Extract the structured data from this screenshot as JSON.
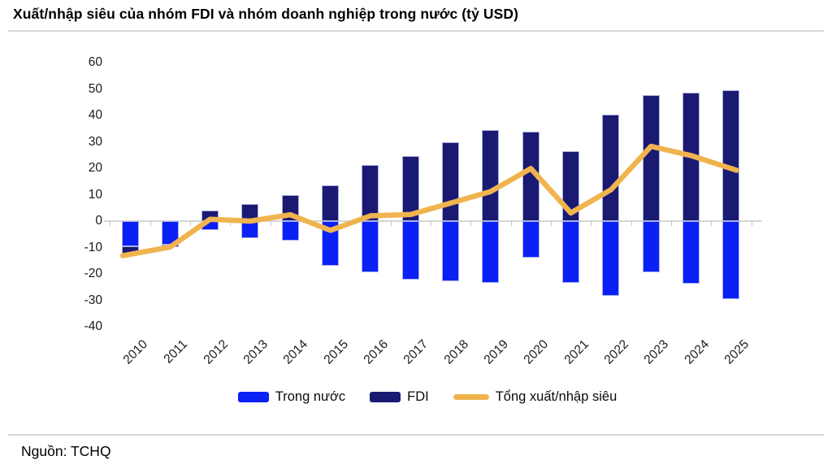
{
  "title": "Xuất/nhập siêu của nhóm FDI và nhóm doanh nghiệp trong nước (tỷ USD)",
  "source": "Nguồn: TCHQ",
  "legend": [
    {
      "label": "Trong nước",
      "swatch": "bar",
      "color": "#0b20f5"
    },
    {
      "label": "FDI",
      "swatch": "bar",
      "color": "#1a1a73"
    },
    {
      "label": "Tổng xuất/nhập siêu",
      "swatch": "line",
      "color": "#f0b44e"
    }
  ],
  "chart_data": {
    "type": "bar",
    "subtype": "bars-with-line-overlay",
    "title": "Xuất/nhập siêu của nhóm FDI và nhóm doanh nghiệp trong nước (tỷ USD)",
    "categories": [
      "2010",
      "2011",
      "2012",
      "2013",
      "2014",
      "2015",
      "2016",
      "2017",
      "2018",
      "2019",
      "2020",
      "2021",
      "2022",
      "2023",
      "2024",
      "2025"
    ],
    "series": [
      {
        "name": "Trong nước",
        "type": "bar",
        "color": "#0b20f5",
        "values": [
          -9.6,
          -9.0,
          -3.4,
          -6.5,
          -7.4,
          -17.0,
          -19.3,
          -22.1,
          -22.9,
          -23.3,
          -13.9,
          -23.3,
          -28.4,
          -19.5,
          -23.7,
          -29.5
        ]
      },
      {
        "name": "FDI",
        "type": "bar",
        "color": "#1a1a73",
        "values": [
          -3.0,
          -0.8,
          4.1,
          6.5,
          9.8,
          13.5,
          21.3,
          24.6,
          29.7,
          34.5,
          33.8,
          26.4,
          40.3,
          47.8,
          48.5,
          49.4
        ]
      },
      {
        "name": "Tổng xuất/nhập siêu",
        "type": "line",
        "color": "#f0b44e",
        "values": [
          -12.6,
          -9.8,
          0.7,
          0.0,
          2.4,
          -3.5,
          2.0,
          2.5,
          6.8,
          11.2,
          19.9,
          3.1,
          11.9,
          28.3,
          24.8,
          19.9
        ]
      }
    ],
    "xlabel": "",
    "ylabel": "",
    "ylim": [
      -40,
      60
    ],
    "yticks": [
      60,
      50,
      40,
      30,
      20,
      10,
      0,
      -10,
      -20,
      -30,
      -40
    ],
    "grid": "zero-line-only",
    "legend_position": "bottom",
    "x_label_rotation_deg": 45
  },
  "colors": {
    "domestic_bar": "#0b20f5",
    "fdi_bar": "#1a1a73",
    "total_line": "#f0b44e",
    "axis_line": "#d6d6d6",
    "divider": "#d9d9d9",
    "text": "#000000"
  }
}
